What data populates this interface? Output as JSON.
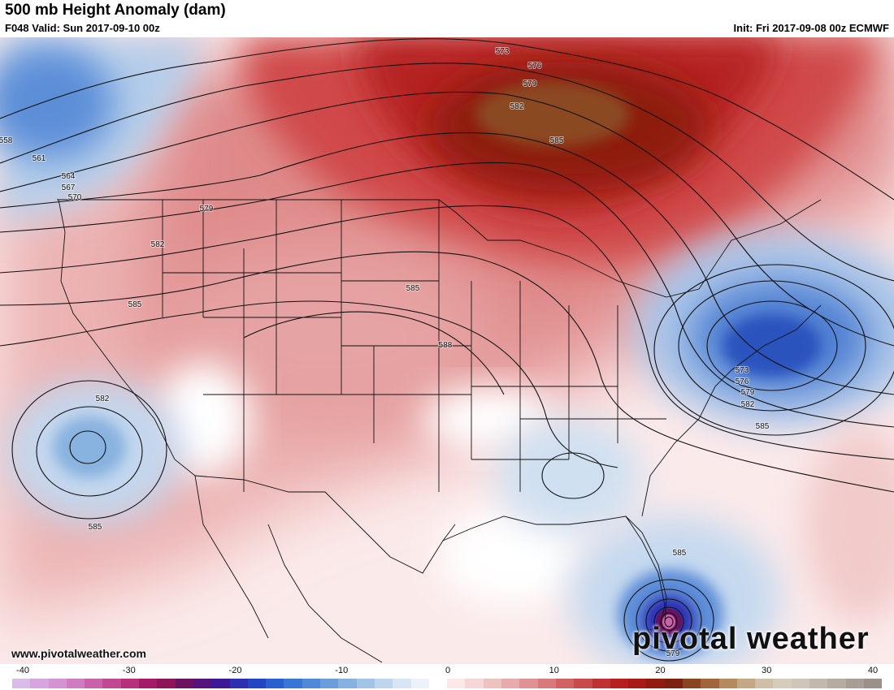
{
  "header": {
    "title": "500 mb Height Anomaly (dam)",
    "valid": "F048 Valid: Sun 2017-09-10 00z",
    "init": "Init: Fri 2017-09-08 00z ECMWF"
  },
  "footer": {
    "url": "www.pivotalweather.com",
    "brand": "pivotal weather"
  },
  "contour_labels": [
    {
      "text": "573",
      "id": "top"
    },
    {
      "text": "576",
      "id": "top"
    },
    {
      "text": "579",
      "id": "top"
    },
    {
      "text": "582",
      "id": "top"
    },
    {
      "text": "585",
      "id": "top"
    },
    {
      "text": "558",
      "id": "nw"
    },
    {
      "text": "561",
      "id": "nw"
    },
    {
      "text": "564",
      "id": "nw"
    },
    {
      "text": "567",
      "id": "nw"
    },
    {
      "text": "570",
      "id": "nw"
    },
    {
      "text": "579",
      "id": "west"
    },
    {
      "text": "582",
      "id": "west"
    },
    {
      "text": "585",
      "id": "west"
    },
    {
      "text": "585",
      "id": "plains"
    },
    {
      "text": "588",
      "id": "plains"
    },
    {
      "text": "582",
      "id": "pacific"
    },
    {
      "text": "585",
      "id": "pacific"
    },
    {
      "text": "573",
      "id": "east"
    },
    {
      "text": "576",
      "id": "east"
    },
    {
      "text": "579",
      "id": "east"
    },
    {
      "text": "582",
      "id": "east"
    },
    {
      "text": "585",
      "id": "east"
    },
    {
      "text": "585",
      "id": "florida"
    },
    {
      "text": "579",
      "id": "florida"
    }
  ],
  "colorbar": {
    "ticks": [
      "-40",
      "-30",
      "-20",
      "-10",
      "0",
      "10",
      "20",
      "30",
      "40"
    ],
    "colors": [
      "#d9bde8",
      "#d7a6e0",
      "#d493d2",
      "#cf7cc1",
      "#c962aa",
      "#c14992",
      "#b8307a",
      "#a51a66",
      "#8c1457",
      "#6c1060",
      "#57137c",
      "#3c1896",
      "#2b2fb0",
      "#2146c3",
      "#2a5fcf",
      "#3a76d6",
      "#5089d9",
      "#6b9ddc",
      "#86b1e0",
      "#a2c4e6",
      "#bdd6ec",
      "#d7e6f2",
      "#ecf2f8",
      "#ffffff",
      "#fbe9e9",
      "#f6d6d6",
      "#efc2c2",
      "#e8aaaa",
      "#e09292",
      "#d87a7a",
      "#d06262",
      "#c84a4a",
      "#c03232",
      "#b81e1e",
      "#a71a16",
      "#911b0e",
      "#7c2110",
      "#8a4420",
      "#a0653a",
      "#b48a5e",
      "#c4a886",
      "#cfbfa6",
      "#d6ccbc",
      "#cfc5bb",
      "#c2b8ae",
      "#b5aca2",
      "#a89e95",
      "#9a928a"
    ]
  }
}
